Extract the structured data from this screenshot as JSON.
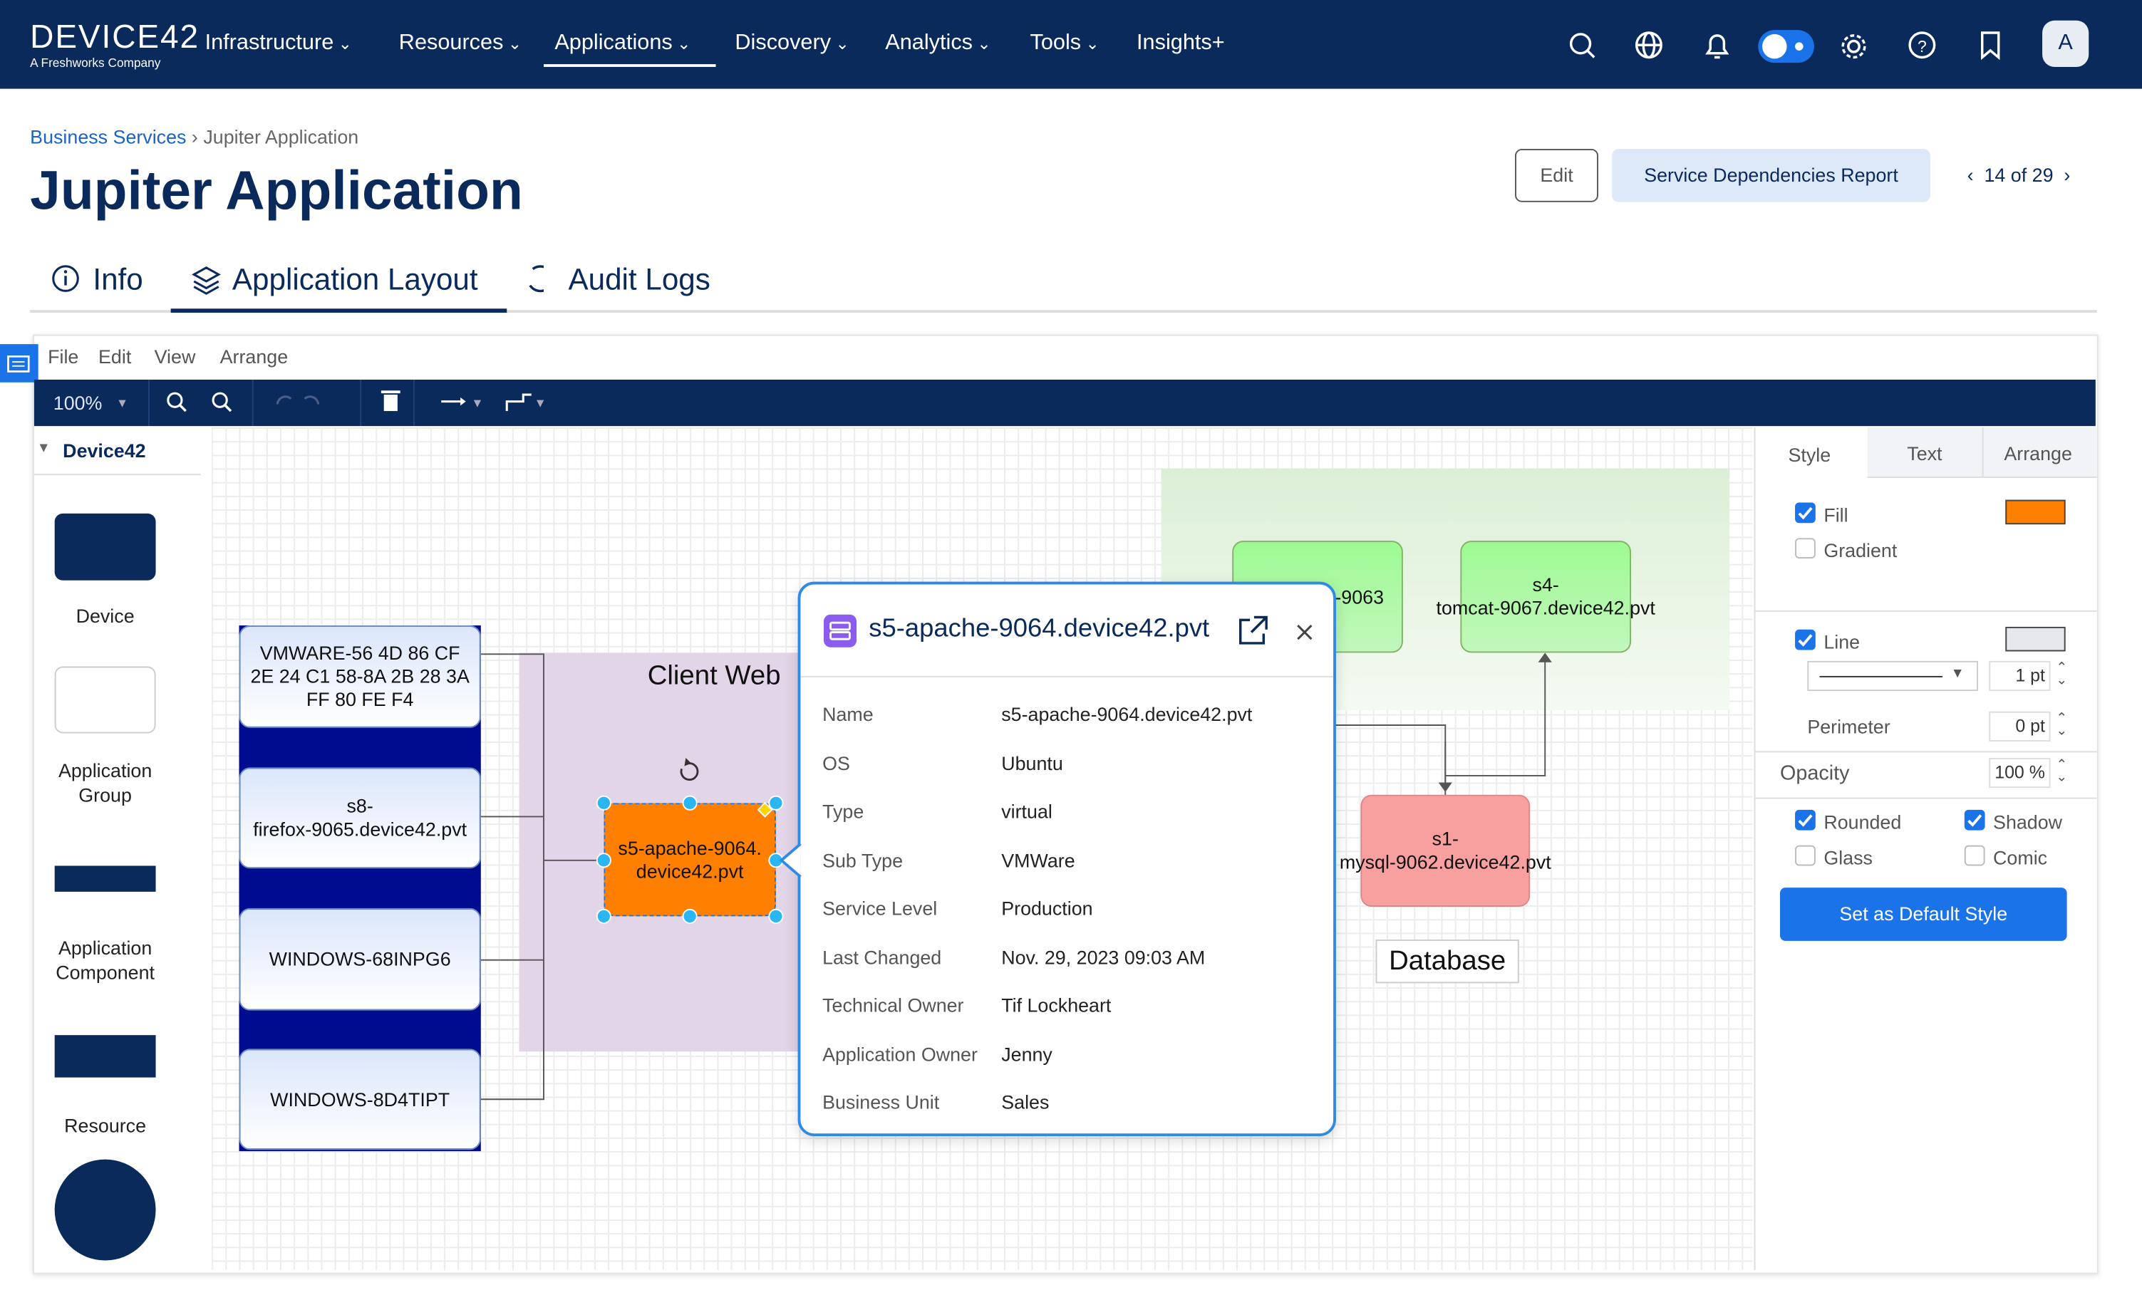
{
  "nav": {
    "logo": "DEVICE42",
    "logo_sub": "A Freshworks Company",
    "menu": [
      "Infrastructure",
      "Resources",
      "Applications",
      "Discovery",
      "Analytics",
      "Tools",
      "Insights+"
    ],
    "avatar": "A"
  },
  "breadcrumb": [
    "Business Services",
    "Jupiter Application"
  ],
  "header": {
    "title": "Jupiter Application",
    "edit": "Edit",
    "report": "Service Dependencies Report",
    "pager": "14 of 29"
  },
  "tabs": [
    "Info",
    "Application Layout",
    "Audit Logs"
  ],
  "editor": {
    "menu": [
      "File",
      "Edit",
      "View",
      "Arrange"
    ],
    "zoom": "100%"
  },
  "palette": {
    "title": "Device42",
    "items": [
      "Device",
      "Application Group",
      "Application Component",
      "Resource"
    ]
  },
  "canvas": {
    "nodes": [
      {
        "lines": [
          "VMWARE-56 4D 86 CF",
          "2E 24 C1 58-8A 2B 28 3A",
          "FF 80 FE F4"
        ]
      },
      {
        "lines": [
          "s8-",
          "firefox-9065.device42.pvt"
        ]
      },
      {
        "lines": [
          "WINDOWS-68INPG6"
        ]
      },
      {
        "lines": [
          "WINDOWS-8D4TIPT"
        ]
      },
      {
        "lines": [
          "s5-apache-9064.",
          "device42.pvt"
        ]
      },
      {
        "lines": [
          "-9063"
        ]
      },
      {
        "lines": [
          "s4-",
          "tomcat-9067.device42.pvt"
        ]
      },
      {
        "lines": [
          "s1-",
          "mysql-9062.device42.pvt"
        ]
      }
    ],
    "groups": [
      "Client Web",
      "Database"
    ]
  },
  "popup": {
    "title": "s5-apache-9064.device42.pvt",
    "fields": [
      {
        "label": "Name",
        "value": "s5-apache-9064.device42.pvt"
      },
      {
        "label": "OS",
        "value": "Ubuntu"
      },
      {
        "label": "Type",
        "value": "virtual"
      },
      {
        "label": "Sub Type",
        "value": "VMWare"
      },
      {
        "label": "Service Level",
        "value": "Production"
      },
      {
        "label": "Last Changed",
        "value": "Nov. 29, 2023 09:03 AM"
      },
      {
        "label": "Technical Owner",
        "value": "Tif Lockheart"
      },
      {
        "label": "Application Owner",
        "value": "Jenny"
      },
      {
        "label": "Business Unit",
        "value": "Sales"
      }
    ]
  },
  "format": {
    "tabs": [
      "Style",
      "Text",
      "Arrange"
    ],
    "fill": "Fill",
    "gradient": "Gradient",
    "line": "Line",
    "line_width": "1 pt",
    "perimeter": "Perimeter",
    "perimeter_value": "0 pt",
    "opacity": "Opacity",
    "opacity_value": "100 %",
    "rounded": "Rounded",
    "shadow": "Shadow",
    "glass": "Glass",
    "comic": "Comic",
    "default_button": "Set as Default Style"
  }
}
